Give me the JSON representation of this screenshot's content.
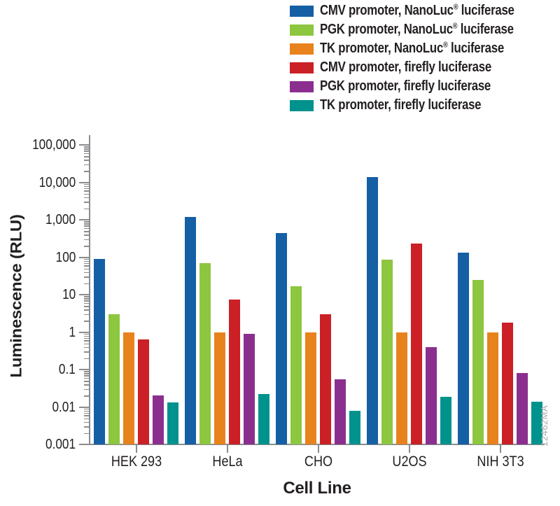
{
  "chart_data": {
    "type": "bar",
    "title": "",
    "xlabel": "Cell Line",
    "ylabel": "Luminescence (RLU)",
    "yscale": "log",
    "ylim": [
      0.001,
      100000
    ],
    "ytick_labels": [
      "100,000",
      "10,000",
      "1,000",
      "100",
      "10",
      "1",
      "0.1",
      "0.01",
      "0.001"
    ],
    "grid": "off",
    "legend_position": "top-right",
    "categories": [
      "HEK 293",
      "HeLa",
      "CHO",
      "U2OS",
      "NIH 3T3"
    ],
    "series": [
      {
        "name": "CMV promoter, NanoLuc® luciferase",
        "color": "#155fa5",
        "values": [
          90,
          1200,
          450,
          14000,
          130
        ]
      },
      {
        "name": "PGK promoter, NanoLuc® luciferase",
        "color": "#8dc63f",
        "values": [
          3,
          70,
          17,
          85,
          25
        ]
      },
      {
        "name": "TK promoter, NanoLuc® luciferase",
        "color": "#e8821d",
        "values": [
          1,
          1,
          1,
          1,
          1
        ]
      },
      {
        "name": "CMV promoter, firefly luciferase",
        "color": "#cb2026",
        "values": [
          0.65,
          7.5,
          3,
          230,
          1.8
        ]
      },
      {
        "name": "PGK promoter, firefly luciferase",
        "color": "#8b2f8f",
        "values": [
          0.02,
          0.9,
          0.055,
          0.4,
          0.08
        ]
      },
      {
        "name": "TK promoter, firefly luciferase",
        "color": "#00928c",
        "values": [
          0.013,
          0.022,
          0.008,
          0.019,
          0.014
        ]
      }
    ],
    "watermark": "12462MA"
  }
}
